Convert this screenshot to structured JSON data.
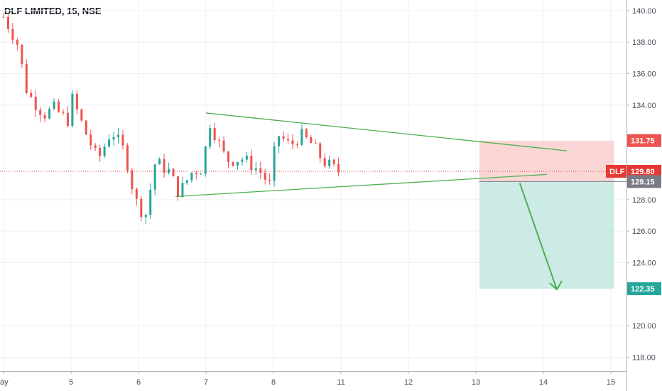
{
  "header": {
    "title": "DLF LIMITED, 15, NSE"
  },
  "colors": {
    "up": "#26a69a",
    "down": "#ef5350",
    "pattern": "#4caf50",
    "stop_zone": "#f8c9c7",
    "target_zone": "#b7e2da",
    "price_line": "#e53935"
  },
  "chart_data": {
    "type": "candlestick",
    "symbol": "DLF LIMITED",
    "interval": "15",
    "exchange": "NSE",
    "x_ticks": [
      "ay",
      "5",
      "6",
      "7",
      "8",
      "11",
      "12",
      "13",
      "14",
      "15"
    ],
    "y_ticks": [
      "140.00",
      "138.00",
      "136.00",
      "134.00",
      "128.00",
      "126.00",
      "124.00",
      "120.00",
      "118.00"
    ],
    "ylim": [
      117.3,
      140.4
    ],
    "price_labels": {
      "stop": "131.75",
      "current": "129.80",
      "current_symbol": "DLF",
      "entry": "129.15",
      "target": "122.35"
    },
    "levels": {
      "stop": 131.75,
      "current": 129.8,
      "entry": 129.15,
      "target": 122.35
    },
    "price_path": [
      [
        "ay",
        139.6
      ],
      [
        4.2,
        138.0
      ],
      [
        4.35,
        134.8
      ],
      [
        4.6,
        133.4
      ],
      [
        4.75,
        133.8
      ],
      [
        4.95,
        133.0
      ],
      [
        5.0,
        134.6
      ],
      [
        5.2,
        132.4
      ],
      [
        5.4,
        130.5
      ],
      [
        5.6,
        132.4
      ],
      [
        5.8,
        131.0
      ],
      [
        5.95,
        128.0
      ],
      [
        6.1,
        126.9
      ],
      [
        6.25,
        130.4
      ],
      [
        6.45,
        129.8
      ],
      [
        6.6,
        128.4
      ],
      [
        6.8,
        129.8
      ],
      [
        6.95,
        130.0
      ],
      [
        7.05,
        133.0
      ],
      [
        7.3,
        130.5
      ],
      [
        7.55,
        130.6
      ],
      [
        7.8,
        129.8
      ],
      [
        7.95,
        128.9
      ],
      [
        8.05,
        132.2
      ],
      [
        8.25,
        131.4
      ],
      [
        8.4,
        132.1
      ],
      [
        8.55,
        131.6
      ],
      [
        8.75,
        130.4
      ],
      [
        8.95,
        129.8
      ]
    ],
    "drawings": {
      "triangle_upper": [
        [
          7.0,
          133.5
        ],
        [
          12.35,
          131.1
        ]
      ],
      "triangle_lower": [
        [
          6.55,
          128.2
        ],
        [
          12.05,
          129.6
        ]
      ],
      "projection_arrow": [
        [
          11.65,
          129.05
        ],
        [
          12.2,
          122.3
        ]
      ]
    }
  }
}
